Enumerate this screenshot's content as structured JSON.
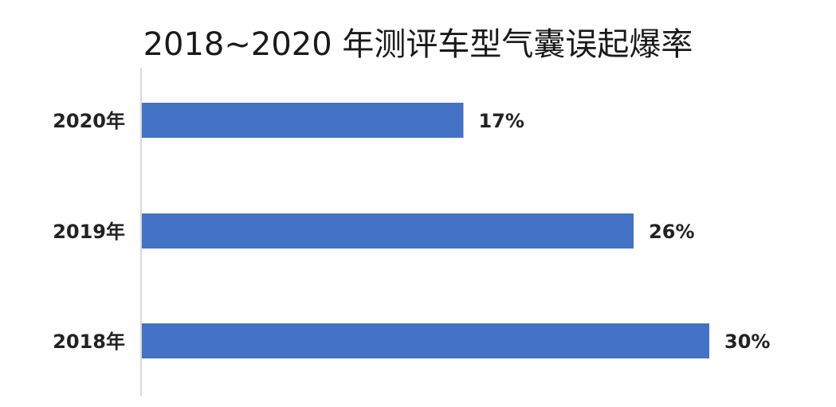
{
  "chart_data": {
    "type": "bar",
    "orientation": "horizontal",
    "title": "2018~2020 年测评车型气囊误起爆率",
    "categories": [
      "2020年",
      "2019年",
      "2018年"
    ],
    "values": [
      17,
      26,
      30
    ],
    "value_labels": [
      "17%",
      "26%",
      "30%"
    ],
    "xlim": [
      0,
      30
    ],
    "grid": false,
    "legend": "none",
    "bar_color": "#4472C4",
    "axis_color": "#d9d9d9"
  }
}
